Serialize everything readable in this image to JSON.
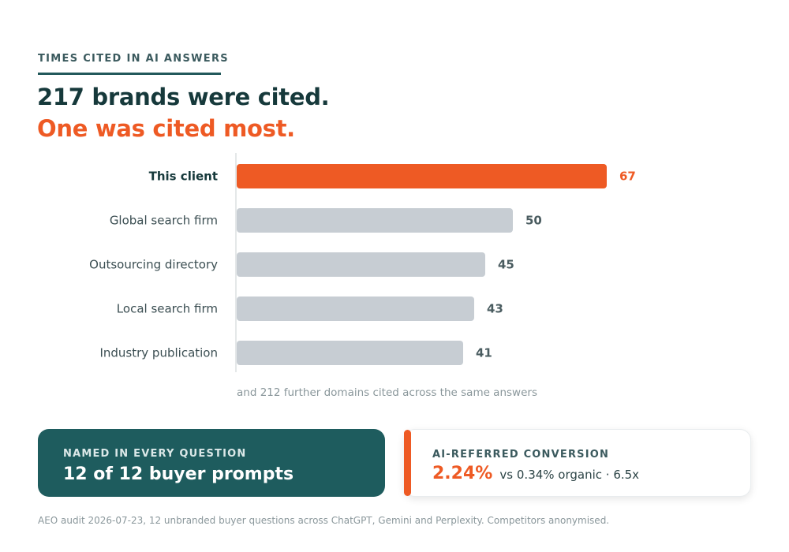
{
  "eyebrow": "TIMES CITED IN AI ANSWERS",
  "headline": {
    "line1": "217 brands were cited.",
    "line2": "One was cited most."
  },
  "chart_data": {
    "type": "bar",
    "orientation": "horizontal",
    "categories": [
      "This client",
      "Global search firm",
      "Outsourcing directory",
      "Local search firm",
      "Industry publication"
    ],
    "values": [
      67,
      50,
      45,
      43,
      41
    ],
    "highlight_index": 0,
    "xlim": [
      0,
      100
    ],
    "colors": {
      "highlight": "#ee5a24",
      "default": "#c7cdd3",
      "label": "#3b4e52",
      "highlight_label": "#16393b",
      "axis": "#c9d0d3"
    },
    "note": "and 212 further domains cited across the same answers"
  },
  "cards": {
    "left": {
      "label": "NAMED IN EVERY QUESTION",
      "value": "12 of 12 buyer prompts"
    },
    "right": {
      "label": "AI-REFERRED CONVERSION",
      "value": "2.24%",
      "detail": "vs 0.34% organic · 6.5x"
    }
  },
  "footnote": "AEO audit 2026-07-23, 12 unbranded buyer questions across ChatGPT, Gemini and Perplexity. Competitors anonymised."
}
